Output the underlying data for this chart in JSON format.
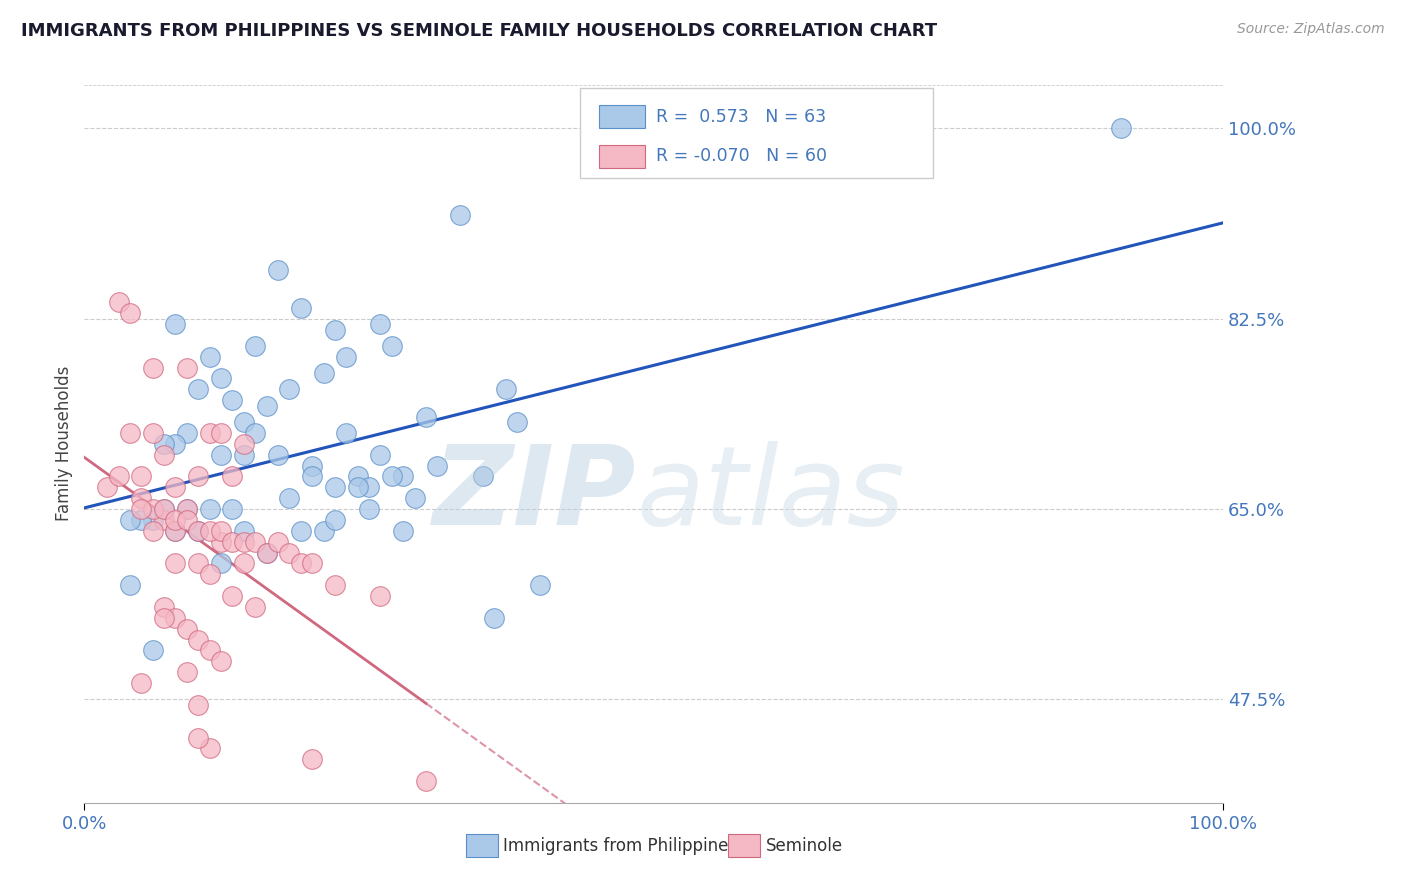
{
  "title": "IMMIGRANTS FROM PHILIPPINES VS SEMINOLE FAMILY HOUSEHOLDS CORRELATION CHART",
  "source": "Source: ZipAtlas.com",
  "ylabel_label": "Family Households",
  "ytick_vals": [
    0.475,
    0.65,
    0.825,
    1.0
  ],
  "ytick_labels": [
    "47.5%",
    "65.0%",
    "82.5%",
    "100.0%"
  ],
  "xtick_vals": [
    0.0,
    1.0
  ],
  "xtick_labels": [
    "0.0%",
    "100.0%"
  ],
  "xlim": [
    0.0,
    1.0
  ],
  "ylim": [
    0.38,
    1.04
  ],
  "series1_color": "#aac8e8",
  "series1_edge": "#5b8fc9",
  "series1_label": "Immigrants from Philippines",
  "series1_R": 0.573,
  "series1_N": 63,
  "series1_line_color": "#2255bb",
  "series2_color": "#f5b8c5",
  "series2_edge": "#d06880",
  "series2_label": "Seminole",
  "series2_R": -0.07,
  "series2_N": 60,
  "series2_line_color": "#d06880",
  "background_color": "#ffffff",
  "grid_color": "#cccccc",
  "title_color": "#1a1a2e",
  "tick_color": "#4477bb",
  "legend_color": "#4477bb",
  "series1_x": [
    0.33,
    0.19,
    0.22,
    0.23,
    0.26,
    0.08,
    0.21,
    0.27,
    0.17,
    0.15,
    0.13,
    0.11,
    0.14,
    0.12,
    0.1,
    0.09,
    0.08,
    0.07,
    0.12,
    0.14,
    0.16,
    0.18,
    0.2,
    0.24,
    0.28,
    0.3,
    0.37,
    0.22,
    0.25,
    0.29,
    0.18,
    0.13,
    0.11,
    0.09,
    0.07,
    0.06,
    0.05,
    0.04,
    0.08,
    0.1,
    0.15,
    0.17,
    0.23,
    0.27,
    0.31,
    0.26,
    0.24,
    0.2,
    0.16,
    0.12,
    0.35,
    0.21,
    0.19,
    0.14,
    0.28,
    0.38,
    0.25,
    0.22,
    0.36,
    0.4,
    0.06,
    0.91,
    0.04
  ],
  "series1_y": [
    0.92,
    0.835,
    0.815,
    0.79,
    0.82,
    0.82,
    0.775,
    0.8,
    0.87,
    0.8,
    0.75,
    0.79,
    0.73,
    0.77,
    0.76,
    0.72,
    0.71,
    0.71,
    0.7,
    0.7,
    0.745,
    0.76,
    0.69,
    0.68,
    0.68,
    0.735,
    0.76,
    0.67,
    0.67,
    0.66,
    0.66,
    0.65,
    0.65,
    0.65,
    0.65,
    0.64,
    0.64,
    0.64,
    0.63,
    0.63,
    0.72,
    0.7,
    0.72,
    0.68,
    0.69,
    0.7,
    0.67,
    0.68,
    0.61,
    0.6,
    0.68,
    0.63,
    0.63,
    0.63,
    0.63,
    0.73,
    0.65,
    0.64,
    0.55,
    0.58,
    0.52,
    1.0,
    0.58
  ],
  "series2_x": [
    0.02,
    0.03,
    0.04,
    0.05,
    0.06,
    0.06,
    0.07,
    0.07,
    0.08,
    0.08,
    0.09,
    0.09,
    0.1,
    0.1,
    0.11,
    0.11,
    0.12,
    0.12,
    0.13,
    0.13,
    0.14,
    0.14,
    0.03,
    0.04,
    0.05,
    0.06,
    0.07,
    0.08,
    0.09,
    0.1,
    0.11,
    0.12,
    0.13,
    0.14,
    0.15,
    0.16,
    0.17,
    0.18,
    0.19,
    0.2,
    0.22,
    0.07,
    0.08,
    0.09,
    0.1,
    0.11,
    0.12,
    0.05,
    0.06,
    0.07,
    0.08,
    0.09,
    0.1,
    0.11,
    0.26,
    0.2,
    0.15,
    0.1,
    0.05,
    0.3
  ],
  "series2_y": [
    0.67,
    0.68,
    0.72,
    0.68,
    0.78,
    0.72,
    0.7,
    0.64,
    0.67,
    0.63,
    0.78,
    0.65,
    0.68,
    0.6,
    0.72,
    0.59,
    0.72,
    0.62,
    0.68,
    0.57,
    0.71,
    0.6,
    0.84,
    0.83,
    0.66,
    0.65,
    0.65,
    0.64,
    0.64,
    0.63,
    0.63,
    0.63,
    0.62,
    0.62,
    0.62,
    0.61,
    0.62,
    0.61,
    0.6,
    0.6,
    0.58,
    0.56,
    0.55,
    0.54,
    0.53,
    0.52,
    0.51,
    0.65,
    0.63,
    0.55,
    0.6,
    0.5,
    0.47,
    0.43,
    0.57,
    0.42,
    0.56,
    0.44,
    0.49,
    0.4
  ]
}
